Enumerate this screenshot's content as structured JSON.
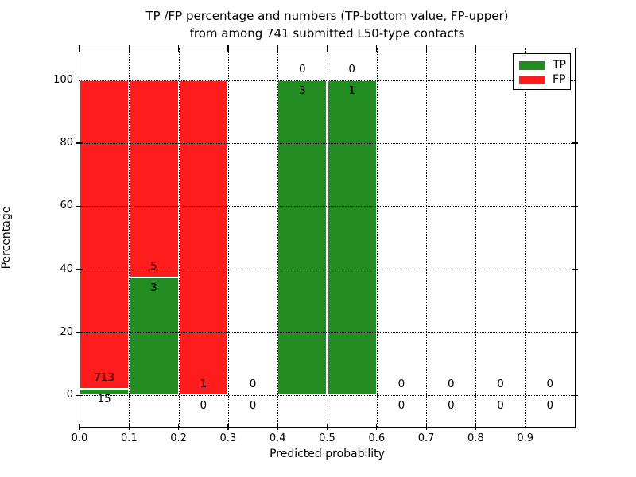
{
  "chart_data": {
    "type": "bar",
    "stacked": true,
    "title_line1": "TP /FP percentage and numbers (TP-bottom value, FP-upper)",
    "title_line2": "from among 741 submitted L50-type contacts",
    "xlabel": "Predicted probability",
    "ylabel": "Percentage",
    "xlim": [
      0.0,
      1.0
    ],
    "ylim": [
      -10,
      110
    ],
    "x_tick_labels": [
      "0.0",
      "0.1",
      "0.2",
      "0.3",
      "0.4",
      "0.5",
      "0.6",
      "0.7",
      "0.8",
      "0.9"
    ],
    "x_tick_values": [
      0.0,
      0.1,
      0.2,
      0.3,
      0.4,
      0.5,
      0.6,
      0.7,
      0.8,
      0.9
    ],
    "y_tick_values": [
      0,
      20,
      40,
      60,
      80,
      100
    ],
    "grid": "dotted, drawn over bars",
    "bin_width": 0.1,
    "total_contacts": 741,
    "legend": {
      "position": "upper right",
      "entries": [
        {
          "label": "TP",
          "color": "#228b22"
        },
        {
          "label": "FP",
          "color": "#ff1c1c"
        }
      ]
    },
    "colors": {
      "tp": "#228b22",
      "fp": "#ff1c1c"
    },
    "bins": [
      {
        "x_start": 0.0,
        "tp": 15,
        "fp": 713,
        "tp_pct": 2.06,
        "total_pct": 100
      },
      {
        "x_start": 0.1,
        "tp": 3,
        "fp": 5,
        "tp_pct": 37.5,
        "total_pct": 100
      },
      {
        "x_start": 0.2,
        "tp": 0,
        "fp": 1,
        "tp_pct": 0,
        "total_pct": 100
      },
      {
        "x_start": 0.3,
        "tp": 0,
        "fp": 0,
        "tp_pct": 0,
        "total_pct": 0
      },
      {
        "x_start": 0.4,
        "tp": 3,
        "fp": 0,
        "tp_pct": 100,
        "total_pct": 100
      },
      {
        "x_start": 0.5,
        "tp": 1,
        "fp": 0,
        "tp_pct": 100,
        "total_pct": 100
      },
      {
        "x_start": 0.6,
        "tp": 0,
        "fp": 0,
        "tp_pct": 0,
        "total_pct": 0
      },
      {
        "x_start": 0.7,
        "tp": 0,
        "fp": 0,
        "tp_pct": 0,
        "total_pct": 0
      },
      {
        "x_start": 0.8,
        "tp": 0,
        "fp": 0,
        "tp_pct": 0,
        "total_pct": 0
      },
      {
        "x_start": 0.9,
        "tp": 0,
        "fp": 0,
        "tp_pct": 0,
        "total_pct": 0
      }
    ]
  }
}
